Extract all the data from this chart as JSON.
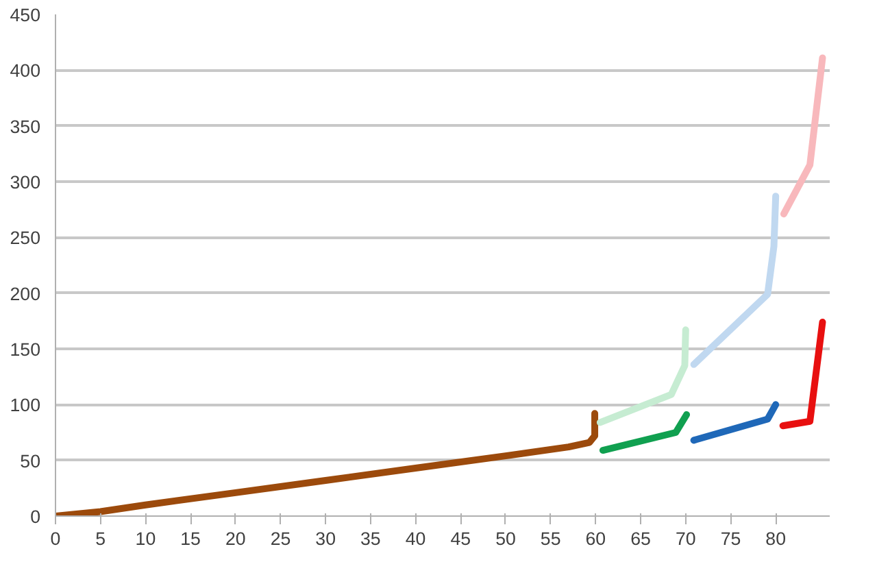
{
  "chart_data": {
    "type": "line",
    "xlim": [
      0,
      86
    ],
    "ylim": [
      0,
      450
    ],
    "xticks": [
      0,
      5,
      10,
      15,
      20,
      25,
      30,
      35,
      40,
      45,
      50,
      55,
      60,
      65,
      70,
      75,
      80
    ],
    "yticks": [
      0,
      50,
      100,
      150,
      200,
      250,
      300,
      350,
      400,
      450
    ],
    "grid": "y",
    "marker": "none",
    "line_style": "solid",
    "series": [
      {
        "color": "#9c4a0c",
        "x": [
          0,
          5,
          10,
          20,
          30,
          40,
          50,
          57,
          59.3,
          59.9,
          59.9
        ],
        "values": [
          0,
          4,
          10,
          21,
          32,
          43,
          54,
          62,
          66,
          72,
          92
        ]
      },
      {
        "color": "#c6ecd2",
        "x": [
          60.5,
          68.4,
          69.9,
          70
        ],
        "values": [
          84,
          109,
          135,
          167
        ]
      },
      {
        "color": "#10a050",
        "x": [
          60.8,
          68.9,
          70.1
        ],
        "values": [
          59,
          75,
          91
        ]
      },
      {
        "color": "#c0d8f0",
        "x": [
          70.9,
          79.1,
          79.8,
          80
        ],
        "values": [
          136,
          199,
          242,
          287
        ]
      },
      {
        "color": "#1f68b8",
        "x": [
          70.9,
          79.1,
          80
        ],
        "values": [
          68,
          87,
          100
        ]
      },
      {
        "color": "#f8b8bc",
        "x": [
          80.9,
          83.8,
          85.2
        ],
        "values": [
          271,
          315,
          411
        ]
      },
      {
        "color": "#e81010",
        "x": [
          80.8,
          83.8,
          85.2
        ],
        "values": [
          81,
          85,
          174
        ]
      }
    ]
  }
}
